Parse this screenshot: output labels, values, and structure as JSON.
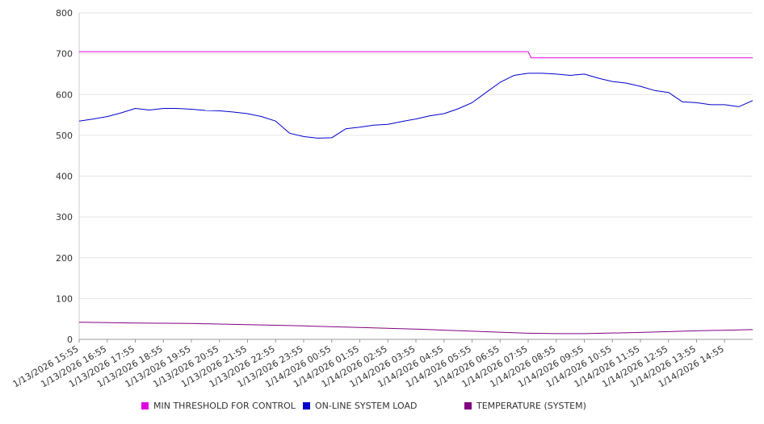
{
  "chart_data": {
    "type": "line",
    "ylim": [
      0,
      800
    ],
    "yticks": [
      "800",
      "700",
      "600",
      "500",
      "400",
      "300",
      "200",
      "100",
      "0"
    ],
    "x_tick_labels": [
      "1/13/2026 15:55",
      "1/13/2026 16:55",
      "1/13/2026 17:55",
      "1/13/2026 18:55",
      "1/13/2026 19:55",
      "1/13/2026 20:55",
      "1/13/2026 21:55",
      "1/13/2026 22:55",
      "1/13/2026 23:55",
      "1/14/2026 00:55",
      "1/14/2026 01:55",
      "1/14/2026 02:55",
      "1/14/2026 03:55",
      "1/14/2026 04:55",
      "1/14/2026 05:55",
      "1/14/2026 06:55",
      "1/14/2026 07:55",
      "1/14/2026 08:55",
      "1/14/2026 09:55",
      "1/14/2026 10:55",
      "1/14/2026 11:55",
      "1/14/2026 12:55",
      "1/14/2026 13:55",
      "1/14/2026 14:55"
    ],
    "x_range_hours": [
      0,
      24
    ],
    "grid": true,
    "legend_position": "bottom",
    "series": [
      {
        "name": "MIN THRESHOLD FOR CONTROL",
        "color": "#e000e0",
        "x_hours": [
          0,
          16,
          16.1,
          24
        ],
        "values": [
          705,
          705,
          690,
          690
        ]
      },
      {
        "name": "ON-LINE SYSTEM LOAD",
        "color": "#0000cc",
        "x_hours": [
          0,
          0.5,
          1,
          1.5,
          2,
          2.5,
          3,
          3.5,
          4,
          4.5,
          5,
          5.5,
          6,
          6.5,
          7,
          7.5,
          8,
          8.5,
          9,
          9.5,
          10,
          10.5,
          11,
          11.5,
          12,
          12.5,
          13,
          13.5,
          14,
          14.5,
          15,
          15.5,
          16,
          16.5,
          17,
          17.5,
          18,
          18.5,
          19,
          19.5,
          20,
          20.5,
          21,
          21.5,
          22,
          22.5,
          23,
          23.5,
          24
        ],
        "values": [
          535,
          540,
          546,
          555,
          566,
          562,
          566,
          566,
          564,
          561,
          560,
          557,
          553,
          546,
          535,
          505,
          497,
          493,
          494,
          516,
          520,
          525,
          527,
          534,
          540,
          548,
          553,
          565,
          580,
          605,
          630,
          647,
          652,
          652,
          650,
          647,
          650,
          640,
          632,
          628,
          620,
          610,
          605,
          582,
          580,
          575,
          575,
          570,
          585
        ]
      },
      {
        "name": "TEMPERATURE (SYSTEM)",
        "color": "#800080",
        "x_hours": [
          0,
          2,
          4,
          6,
          8,
          10,
          12,
          14,
          16,
          17,
          18,
          20,
          22,
          24
        ],
        "values": [
          42,
          40,
          39,
          36,
          33,
          29,
          25,
          20,
          15,
          14,
          14,
          17,
          21,
          24
        ]
      }
    ]
  }
}
